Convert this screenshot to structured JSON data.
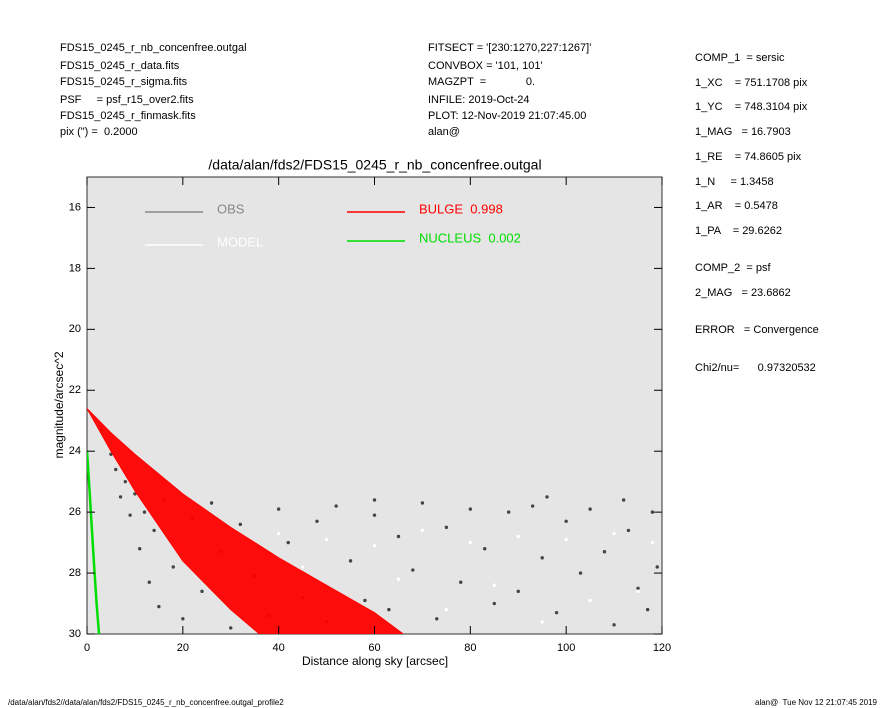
{
  "header": {
    "left_lines": [
      "FDS15_0245_r_nb_concenfree.outgal",
      "FDS15_0245_r_data.fits",
      "FDS15_0245_r_sigma.fits",
      "PSF     = psf_r15_over2.fits",
      "FDS15_0245_r_finmask.fits",
      "pix (\") =  0.2000"
    ],
    "middle_lines": [
      "FITSECT = '[230:1270,227:1267]'",
      "CONVBOX = '101, 101'",
      "MAGZPT  =             0.",
      "INFILE: 2019-Oct-24",
      "PLOT: 12-Nov-2019 21:07:45.00",
      "alan@"
    ],
    "right_lines": [
      "COMP_1  = sersic",
      "1_XC    = 751.1708 pix",
      "1_YC    = 748.3104 pix",
      "1_MAG   = 16.7903",
      "1_RE    = 74.8605 pix",
      "1_N     = 1.3458",
      "1_AR    = 0.5478",
      "1_PA    = 29.6262",
      "COMP_2  = psf",
      "2_MAG   = 23.6862",
      "ERROR   = Convergence",
      "Chi2/nu=      0.97320532"
    ]
  },
  "footer": {
    "left": "/data/alan/fds2//data/alan/fds2/FDS15_0245_r_nb_concenfree.outgal_profile2",
    "right": "alan@  Tue Nov 12 21:07:45 2019"
  },
  "chart_data": {
    "type": "scatter",
    "title": "/data/alan/fds2/FDS15_0245_r_nb_concenfree.outgal",
    "x_label": "Distance along sky [arcsec]",
    "y_label": "magnitude/arcsec^2",
    "xlim": [
      0,
      120
    ],
    "xticks": [
      0,
      20,
      40,
      60,
      80,
      100,
      120
    ],
    "ylim": [
      30,
      15
    ],
    "yticks": [
      16,
      18,
      20,
      22,
      24,
      26,
      28,
      30
    ],
    "background": "#e5e5e5",
    "series": [
      {
        "name": "OBS",
        "color": "#444444",
        "legend_color": "#888888",
        "mode": "points",
        "x": [
          3,
          5,
          6,
          7,
          8,
          9,
          10,
          11,
          12,
          13,
          14,
          15,
          16,
          18,
          20,
          22,
          24,
          26,
          28,
          30,
          32,
          35,
          38,
          40,
          42,
          45,
          48,
          50,
          52,
          55,
          58,
          60,
          63,
          65,
          68,
          70,
          73,
          75,
          78,
          80,
          83,
          85,
          88,
          90,
          93,
          95,
          98,
          100,
          103,
          105,
          108,
          110,
          113,
          115,
          118,
          119,
          117,
          112,
          96,
          60
        ],
        "values": [
          23.3,
          24.1,
          24.6,
          25.5,
          25.0,
          26.1,
          25.4,
          27.2,
          26.0,
          28.3,
          26.6,
          29.1,
          25.6,
          27.8,
          29.5,
          26.2,
          28.6,
          25.7,
          27.3,
          29.8,
          26.4,
          28.1,
          29.4,
          25.9,
          27.0,
          28.8,
          26.3,
          29.6,
          25.8,
          27.6,
          28.9,
          26.1,
          29.2,
          26.8,
          27.9,
          25.7,
          29.5,
          26.5,
          28.3,
          25.9,
          27.2,
          29.0,
          26.0,
          28.6,
          25.8,
          27.5,
          29.3,
          26.3,
          28.0,
          25.9,
          27.3,
          29.7,
          26.6,
          28.5,
          26.0,
          27.8,
          29.2,
          25.6,
          25.5,
          25.6
        ]
      },
      {
        "name": "MODEL",
        "color": "#ffffff",
        "legend_color": "#ffffff",
        "mode": "points",
        "x": [
          20,
          30,
          40,
          50,
          60,
          70,
          80,
          90,
          100,
          110,
          118,
          25,
          45,
          65,
          85,
          105,
          115,
          55,
          95,
          75
        ],
        "values": [
          26.4,
          26.8,
          26.7,
          26.9,
          27.1,
          26.6,
          27.0,
          26.8,
          26.9,
          26.7,
          27.0,
          27.4,
          27.8,
          28.2,
          28.4,
          28.9,
          28.6,
          29.4,
          29.6,
          29.2
        ]
      },
      {
        "name": "BULGE  0.998",
        "color": "#ff0000",
        "legend_color": "#ff0000",
        "mode": "band",
        "x": [
          0,
          5,
          10,
          20,
          30,
          36,
          40,
          50,
          60,
          66
        ],
        "values": [
          22.6,
          24.0,
          25.3,
          27.6,
          29.2,
          30,
          null,
          null,
          null,
          null
        ],
        "values_outer": [
          22.6,
          23.4,
          24.1,
          25.4,
          26.5,
          27.1,
          27.5,
          28.4,
          29.3,
          30
        ]
      },
      {
        "name": "NUCLEUS  0.002",
        "color": "#00dd00",
        "legend_color": "#00dd00",
        "mode": "line",
        "x": [
          0,
          0.5,
          1,
          1.5,
          2,
          2.5
        ],
        "values": [
          24.0,
          25.2,
          26.5,
          27.8,
          29.0,
          30
        ]
      }
    ]
  }
}
